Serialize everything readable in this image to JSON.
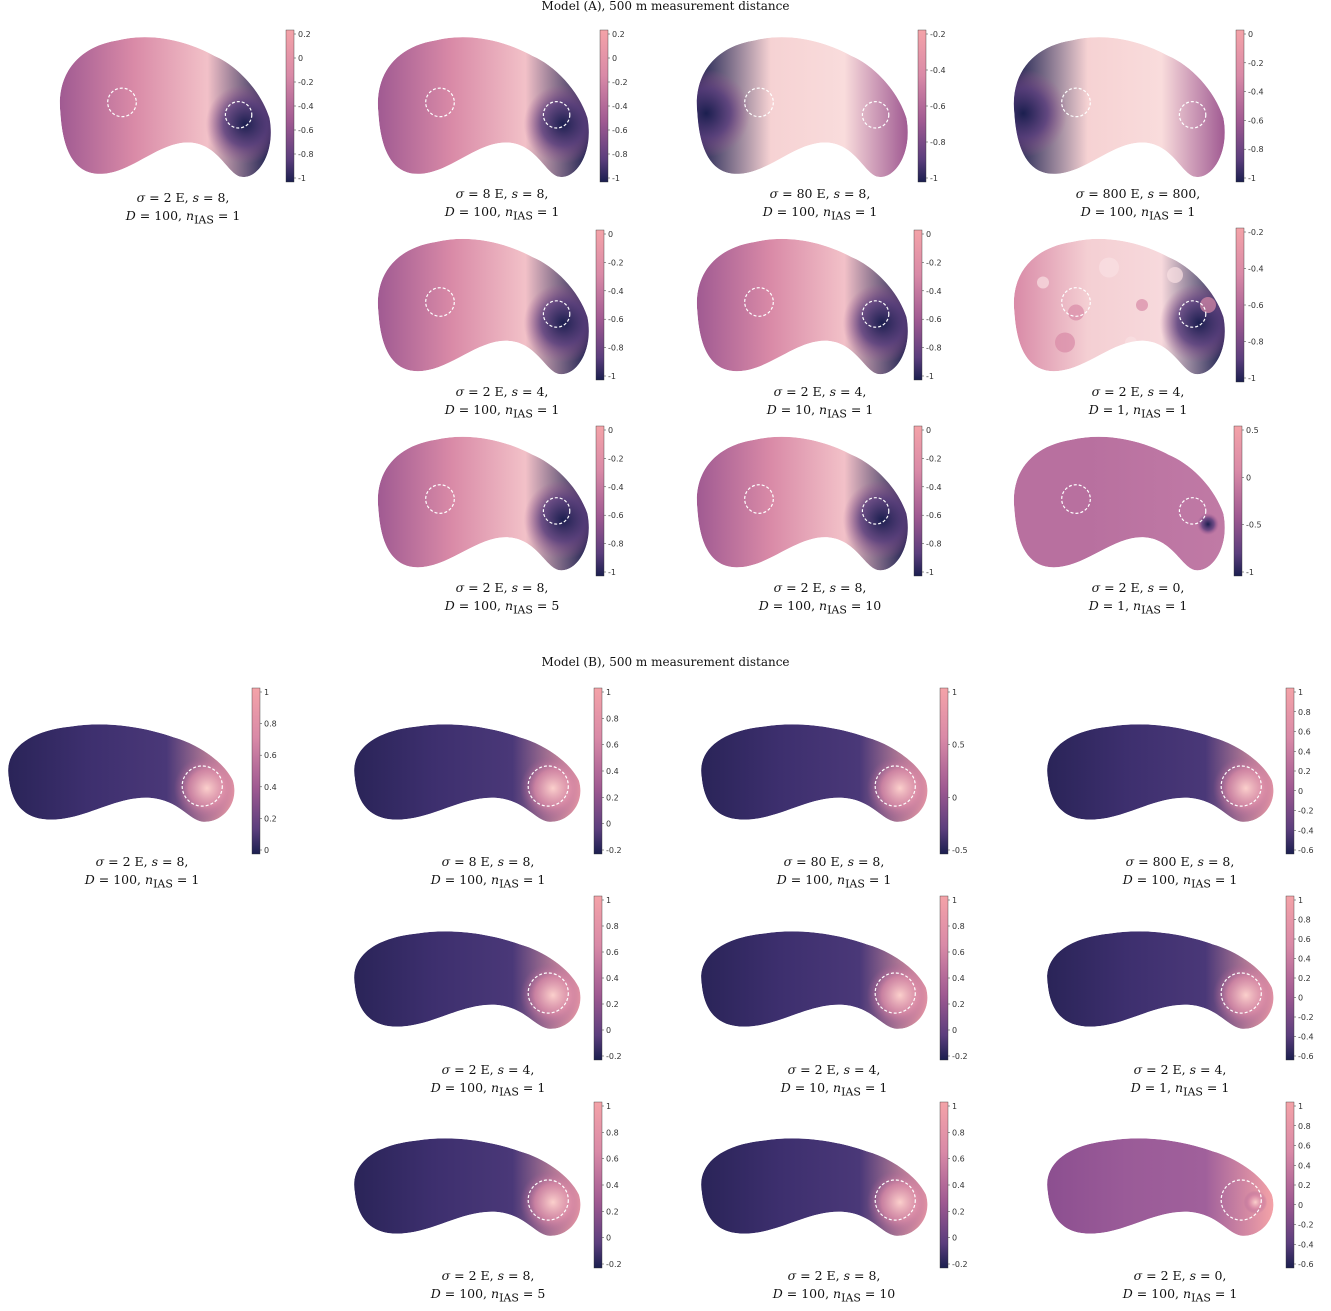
{
  "colormap": {
    "low": "#1b1f4f",
    "mid_low": "#5b3e7d",
    "mid": "#a05a92",
    "mid_high": "#d98aa7",
    "high": "#f4a3a8",
    "outline": "#ffffff"
  },
  "sections": [
    {
      "title": "Model (A), 500 m measurement distance",
      "panels": [
        {
          "sigma": "2 E",
          "s": "8",
          "D": "100",
          "nias": "1",
          "ticks": [
            "0.2",
            "0",
            "-0.2",
            "-0.4",
            "-0.6",
            "-0.8",
            "-1"
          ],
          "value_range": [
            -1,
            0.25
          ],
          "hotspot": "right-dark"
        },
        {
          "sigma": "8 E",
          "s": "8",
          "D": "100",
          "nias": "1",
          "ticks": [
            "0.2",
            "0",
            "-0.2",
            "-0.4",
            "-0.6",
            "-0.8",
            "-1"
          ],
          "value_range": [
            -1,
            0.25
          ],
          "hotspot": "right-dark"
        },
        {
          "sigma": "80 E",
          "s": "8",
          "D": "100",
          "nias": "1",
          "ticks": [
            "-0.2",
            "-0.4",
            "-0.6",
            "-0.8",
            "-1"
          ],
          "value_range": [
            -1,
            0
          ],
          "hotspot": "left-dark"
        },
        {
          "sigma": "800 E",
          "s": "800",
          "D": "100",
          "nias": "1",
          "ticks": [
            "0",
            "-0.2",
            "-0.4",
            "-0.6",
            "-0.8",
            "-1"
          ],
          "value_range": [
            -1,
            0
          ],
          "hotspot": "left-dark"
        },
        {
          "sigma": "2 E",
          "s": "4",
          "D": "100",
          "nias": "1",
          "ticks": [
            "0",
            "-0.2",
            "-0.4",
            "-0.6",
            "-0.8",
            "-1"
          ],
          "value_range": [
            -1,
            0.05
          ],
          "hotspot": "right-dark"
        },
        {
          "sigma": "2 E",
          "s": "4",
          "D": "10",
          "nias": "1",
          "ticks": [
            "0",
            "-0.2",
            "-0.4",
            "-0.6",
            "-0.8",
            "-1"
          ],
          "value_range": [
            -1,
            0
          ],
          "hotspot": "right-dark"
        },
        {
          "sigma": "2 E",
          "s": "4",
          "D": "1",
          "nias": "1",
          "ticks": [
            "-0.2",
            "-0.4",
            "-0.6",
            "-0.8",
            "-1"
          ],
          "value_range": [
            -1,
            0
          ],
          "hotspot": "noisy"
        },
        {
          "sigma": "2 E",
          "s": "8",
          "D": "100",
          "nias": "5",
          "ticks": [
            "0",
            "-0.2",
            "-0.4",
            "-0.6",
            "-0.8",
            "-1"
          ],
          "value_range": [
            -1,
            0
          ],
          "hotspot": "right-dark"
        },
        {
          "sigma": "2 E",
          "s": "8",
          "D": "100",
          "nias": "10",
          "ticks": [
            "0",
            "-0.2",
            "-0.4",
            "-0.6",
            "-0.8",
            "-1"
          ],
          "value_range": [
            -1,
            0
          ],
          "hotspot": "right-dark"
        },
        {
          "sigma": "2 E",
          "s": "0",
          "D": "1",
          "nias": "1",
          "ticks": [
            "0.5",
            "0",
            "-0.5",
            "-1"
          ],
          "value_range": [
            -1,
            0.6
          ],
          "hotspot": "flat"
        }
      ]
    },
    {
      "title": "Model (B), 500 m measurement distance",
      "panels": [
        {
          "sigma": "2 E",
          "s": "8",
          "D": "100",
          "nias": "1",
          "ticks": [
            "1",
            "0.8",
            "0.6",
            "0.4",
            "0.2",
            "0"
          ],
          "value_range": [
            -0.15,
            1
          ],
          "hotspot": "right-bright"
        },
        {
          "sigma": "8 E",
          "s": "8",
          "D": "100",
          "nias": "1",
          "ticks": [
            "1",
            "0.8",
            "0.6",
            "0.4",
            "0.2",
            "0",
            "-0.2"
          ],
          "value_range": [
            -0.2,
            1
          ],
          "hotspot": "right-bright"
        },
        {
          "sigma": "80 E",
          "s": "8",
          "D": "100",
          "nias": "1",
          "ticks": [
            "1",
            "0.5",
            "0",
            "-0.5"
          ],
          "value_range": [
            -0.5,
            1
          ],
          "hotspot": "right-bright"
        },
        {
          "sigma": "800 E",
          "s": "8",
          "D": "100",
          "nias": "1",
          "ticks": [
            "1",
            "0.8",
            "0.6",
            "0.4",
            "0.2",
            "0",
            "-0.2",
            "-0.4",
            "-0.6"
          ],
          "value_range": [
            -0.7,
            1
          ],
          "hotspot": "right-bright"
        },
        {
          "sigma": "2 E",
          "s": "4",
          "D": "100",
          "nias": "1",
          "ticks": [
            "1",
            "0.8",
            "0.6",
            "0.4",
            "0.2",
            "0",
            "-0.2"
          ],
          "value_range": [
            -0.2,
            1
          ],
          "hotspot": "right-bright"
        },
        {
          "sigma": "2 E",
          "s": "4",
          "D": "10",
          "nias": "1",
          "ticks": [
            "1",
            "0.8",
            "0.6",
            "0.4",
            "0.2",
            "0",
            "-0.2"
          ],
          "value_range": [
            -0.2,
            1
          ],
          "hotspot": "right-bright"
        },
        {
          "sigma": "2 E",
          "s": "4",
          "D": "1",
          "nias": "1",
          "ticks": [
            "1",
            "0.8",
            "0.6",
            "0.4",
            "0.2",
            "0",
            "-0.2",
            "-0.4",
            "-0.6"
          ],
          "value_range": [
            -0.7,
            1
          ],
          "hotspot": "right-bright"
        },
        {
          "sigma": "2 E",
          "s": "8",
          "D": "100",
          "nias": "5",
          "ticks": [
            "1",
            "0.8",
            "0.6",
            "0.4",
            "0.2",
            "0",
            "-0.2"
          ],
          "value_range": [
            -0.2,
            1
          ],
          "hotspot": "right-bright"
        },
        {
          "sigma": "2 E",
          "s": "8",
          "D": "100",
          "nias": "10",
          "ticks": [
            "1",
            "0.8",
            "0.6",
            "0.4",
            "0.2",
            "0",
            "-0.2"
          ],
          "value_range": [
            -0.2,
            1
          ],
          "hotspot": "right-bright"
        },
        {
          "sigma": "2 E",
          "s": "0",
          "D": "100",
          "nias": "1",
          "ticks": [
            "1",
            "0.8",
            "0.6",
            "0.4",
            "0.2",
            "0",
            "-0.2",
            "-0.4",
            "-0.6"
          ],
          "value_range": [
            -0.7,
            1
          ],
          "hotspot": "flat"
        }
      ]
    }
  ]
}
